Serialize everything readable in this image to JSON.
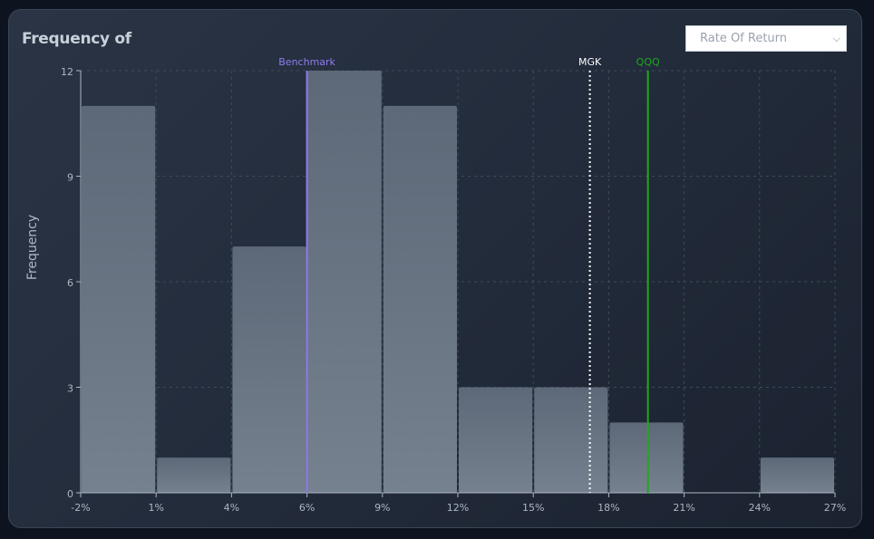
{
  "header": {
    "title": "Frequency of",
    "dropdown_value": "Rate Of Return"
  },
  "chart_data": {
    "type": "bar",
    "title": "Frequency of",
    "xlabel": "",
    "ylabel": "Frequency",
    "x_ticks": [
      "-2%",
      "1%",
      "4%",
      "6%",
      "9%",
      "12%",
      "15%",
      "18%",
      "21%",
      "24%",
      "27%"
    ],
    "y_ticks": [
      0,
      3,
      6,
      9,
      12
    ],
    "ylim": [
      0,
      12
    ],
    "grid": true,
    "bins": [
      {
        "from": "-2%",
        "to": "1%",
        "value": 11
      },
      {
        "from": "1%",
        "to": "4%",
        "value": 1
      },
      {
        "from": "4%",
        "to": "6%",
        "value": 7
      },
      {
        "from": "6%",
        "to": "9%",
        "value": 12
      },
      {
        "from": "9%",
        "to": "12%",
        "value": 11
      },
      {
        "from": "12%",
        "to": "15%",
        "value": 3
      },
      {
        "from": "15%",
        "to": "18%",
        "value": 3
      },
      {
        "from": "18%",
        "to": "21%",
        "value": 2
      },
      {
        "from": "21%",
        "to": "24%",
        "value": 0
      },
      {
        "from": "24%",
        "to": "27%",
        "value": 1
      }
    ],
    "markers": [
      {
        "name": "Benchmark",
        "bin_position": 3.0,
        "color": "#8f7ef0",
        "style": "solid"
      },
      {
        "name": "MGK",
        "bin_position": 6.75,
        "color": "#ffffff",
        "style": "dotted"
      },
      {
        "name": "QQQ",
        "bin_position": 7.52,
        "color": "#1fa81f",
        "style": "solid"
      }
    ],
    "colors": {
      "bar_top": "#5d6878",
      "bar_bottom": "#76818f",
      "grid": "#3f4a5b",
      "axis": "#aeb6c2"
    }
  }
}
